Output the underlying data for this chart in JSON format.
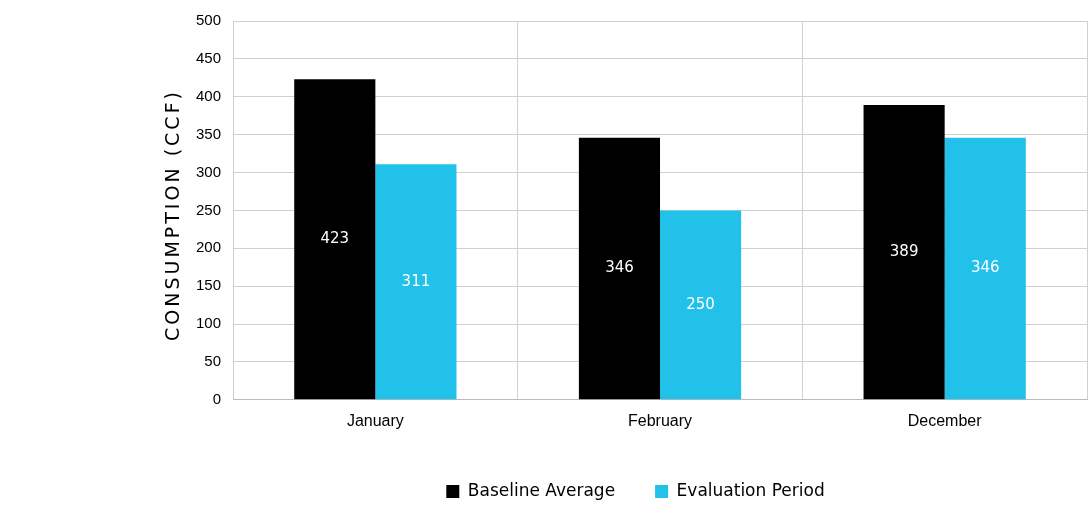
{
  "chart_data": {
    "type": "bar",
    "ylabel": "CONSUMPTION (CCF)",
    "categories": [
      "January",
      "February",
      "December"
    ],
    "series": [
      {
        "name": "Baseline Average",
        "color": "#000000",
        "values": [
          423,
          346,
          389
        ]
      },
      {
        "name": "Evaluation Period",
        "color": "#21c1ea",
        "values": [
          311,
          250,
          346
        ]
      }
    ],
    "ylim": [
      0,
      500
    ],
    "yticks": [
      0,
      50,
      100,
      150,
      200,
      250,
      300,
      350,
      400,
      450,
      500
    ],
    "grid": true,
    "legend": "bottom",
    "data_labels": true
  }
}
